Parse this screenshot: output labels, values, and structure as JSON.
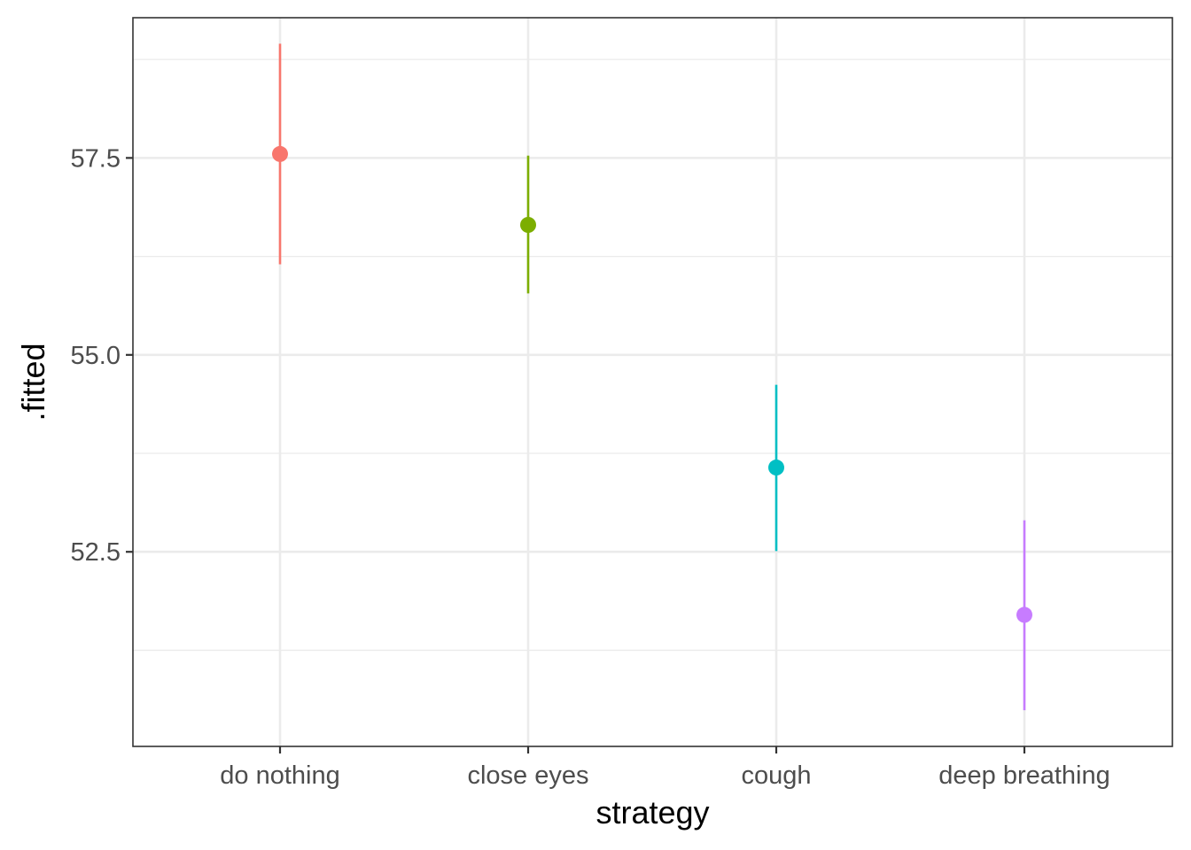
{
  "chart_data": {
    "type": "scatter",
    "subtype": "pointrange",
    "title": "",
    "xlabel": "strategy",
    "ylabel": ".fitted",
    "categories": [
      "do nothing",
      "close eyes",
      "cough",
      "deep breathing"
    ],
    "series": [
      {
        "category": "do nothing",
        "value": 57.55,
        "lower": 56.15,
        "upper": 58.95,
        "color": "#F8766D"
      },
      {
        "category": "close eyes",
        "value": 56.65,
        "lower": 55.78,
        "upper": 57.53,
        "color": "#7CAE00"
      },
      {
        "category": "cough",
        "value": 53.57,
        "lower": 52.51,
        "upper": 54.62,
        "color": "#00BFC4"
      },
      {
        "category": "deep breathing",
        "value": 51.7,
        "lower": 50.49,
        "upper": 52.9,
        "color": "#C77CFF"
      }
    ],
    "ylim": [
      50.03,
      59.28
    ],
    "y_major_ticks": [
      52.5,
      55.0,
      57.5
    ],
    "y_tick_labels": [
      "52.5",
      "55.0",
      "57.5"
    ],
    "y_minor_ticks": [
      51.25,
      53.75,
      56.25,
      58.75
    ],
    "grid": true,
    "legend": "none",
    "theme_colors": {
      "grid": "#ebebeb",
      "border": "#333333",
      "tick_label": "#4d4d4d",
      "axis_title": "#000000"
    }
  }
}
